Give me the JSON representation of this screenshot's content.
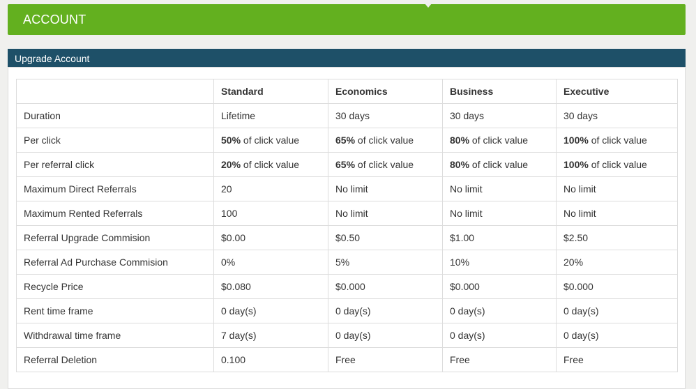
{
  "header": {
    "title": "ACCOUNT"
  },
  "section": {
    "title": "Upgrade Account"
  },
  "table": {
    "columns": [
      "",
      "Standard",
      "Economics",
      "Business",
      "Executive"
    ],
    "rows": [
      {
        "label": "Duration",
        "cells": [
          {
            "text": "Lifetime"
          },
          {
            "text": "30 days"
          },
          {
            "text": "30 days"
          },
          {
            "text": "30 days"
          }
        ]
      },
      {
        "label": "Per click",
        "cells": [
          {
            "bold": "50%",
            "text": " of click value"
          },
          {
            "bold": "65%",
            "text": " of click value"
          },
          {
            "bold": "80%",
            "text": " of click value"
          },
          {
            "bold": "100%",
            "text": " of click value"
          }
        ]
      },
      {
        "label": "Per referral click",
        "cells": [
          {
            "bold": "20%",
            "text": " of click value"
          },
          {
            "bold": "65%",
            "text": " of click value"
          },
          {
            "bold": "80%",
            "text": " of click value"
          },
          {
            "bold": "100%",
            "text": " of click value"
          }
        ]
      },
      {
        "label": "Maximum Direct Referrals",
        "cells": [
          {
            "text": "20"
          },
          {
            "text": "No limit"
          },
          {
            "text": "No limit"
          },
          {
            "text": "No limit"
          }
        ]
      },
      {
        "label": "Maximum Rented Referrals",
        "cells": [
          {
            "text": "100"
          },
          {
            "text": "No limit"
          },
          {
            "text": "No limit"
          },
          {
            "text": "No limit"
          }
        ]
      },
      {
        "label": "Referral Upgrade Commision",
        "cells": [
          {
            "text": "$0.00"
          },
          {
            "text": "$0.50"
          },
          {
            "text": "$1.00"
          },
          {
            "text": "$2.50"
          }
        ]
      },
      {
        "label": "Referral Ad Purchase Commision",
        "cells": [
          {
            "text": "0%"
          },
          {
            "text": "5%"
          },
          {
            "text": "10%"
          },
          {
            "text": "20%"
          }
        ]
      },
      {
        "label": "Recycle Price",
        "cells": [
          {
            "text": "$0.080"
          },
          {
            "text": "$0.000"
          },
          {
            "text": "$0.000"
          },
          {
            "text": "$0.000"
          }
        ]
      },
      {
        "label": "Rent time frame",
        "cells": [
          {
            "text": "0 day(s)"
          },
          {
            "text": "0 day(s)"
          },
          {
            "text": "0 day(s)"
          },
          {
            "text": "0 day(s)"
          }
        ]
      },
      {
        "label": "Withdrawal time frame",
        "cells": [
          {
            "text": "7 day(s)"
          },
          {
            "text": "0 day(s)"
          },
          {
            "text": "0 day(s)"
          },
          {
            "text": "0 day(s)"
          }
        ]
      },
      {
        "label": "Referral Deletion",
        "cells": [
          {
            "text": "0.100"
          },
          {
            "text": "Free"
          },
          {
            "text": "Free"
          },
          {
            "text": "Free"
          }
        ]
      }
    ]
  },
  "colors": {
    "account_bar": "#63b01f",
    "section_header": "#1e5068",
    "page_background": "#f0f0ee"
  }
}
